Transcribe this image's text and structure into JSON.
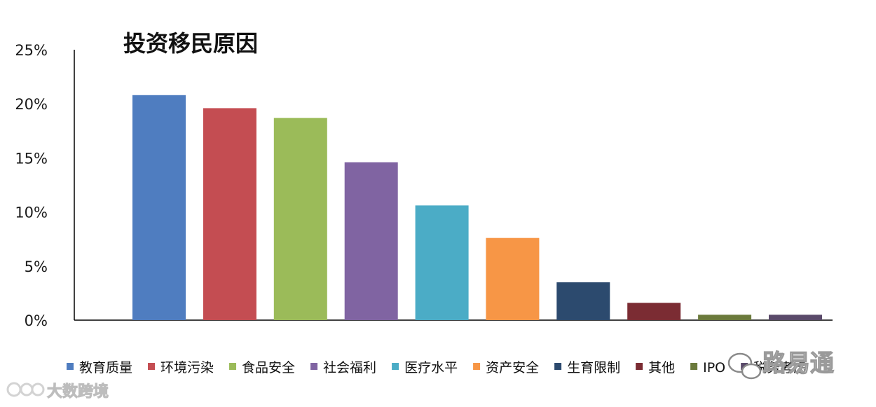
{
  "chart_data": {
    "type": "bar",
    "title": "投资移民原因",
    "categories": [
      "教育质量",
      "环境污染",
      "食品安全",
      "社会福利",
      "医疗水平",
      "资产安全",
      "生育限制",
      "其他",
      "IPO",
      "税务考虑"
    ],
    "values": [
      20.8,
      19.6,
      18.7,
      14.6,
      10.6,
      7.6,
      3.5,
      1.6,
      0.5,
      0.5
    ],
    "colors": [
      "#4f7dc0",
      "#c44d52",
      "#9bbb59",
      "#8064a2",
      "#4bacc6",
      "#f79646",
      "#2c4a6e",
      "#7b2c33",
      "#6b7a3c",
      "#5a4a6a"
    ],
    "yticks": [
      "0%",
      "5%",
      "10%",
      "15%",
      "20%",
      "25%"
    ],
    "ylim": [
      0,
      25
    ],
    "grid": false,
    "legend_position": "bottom"
  },
  "watermarks": {
    "left": "大数跨境",
    "right": "路易通"
  }
}
